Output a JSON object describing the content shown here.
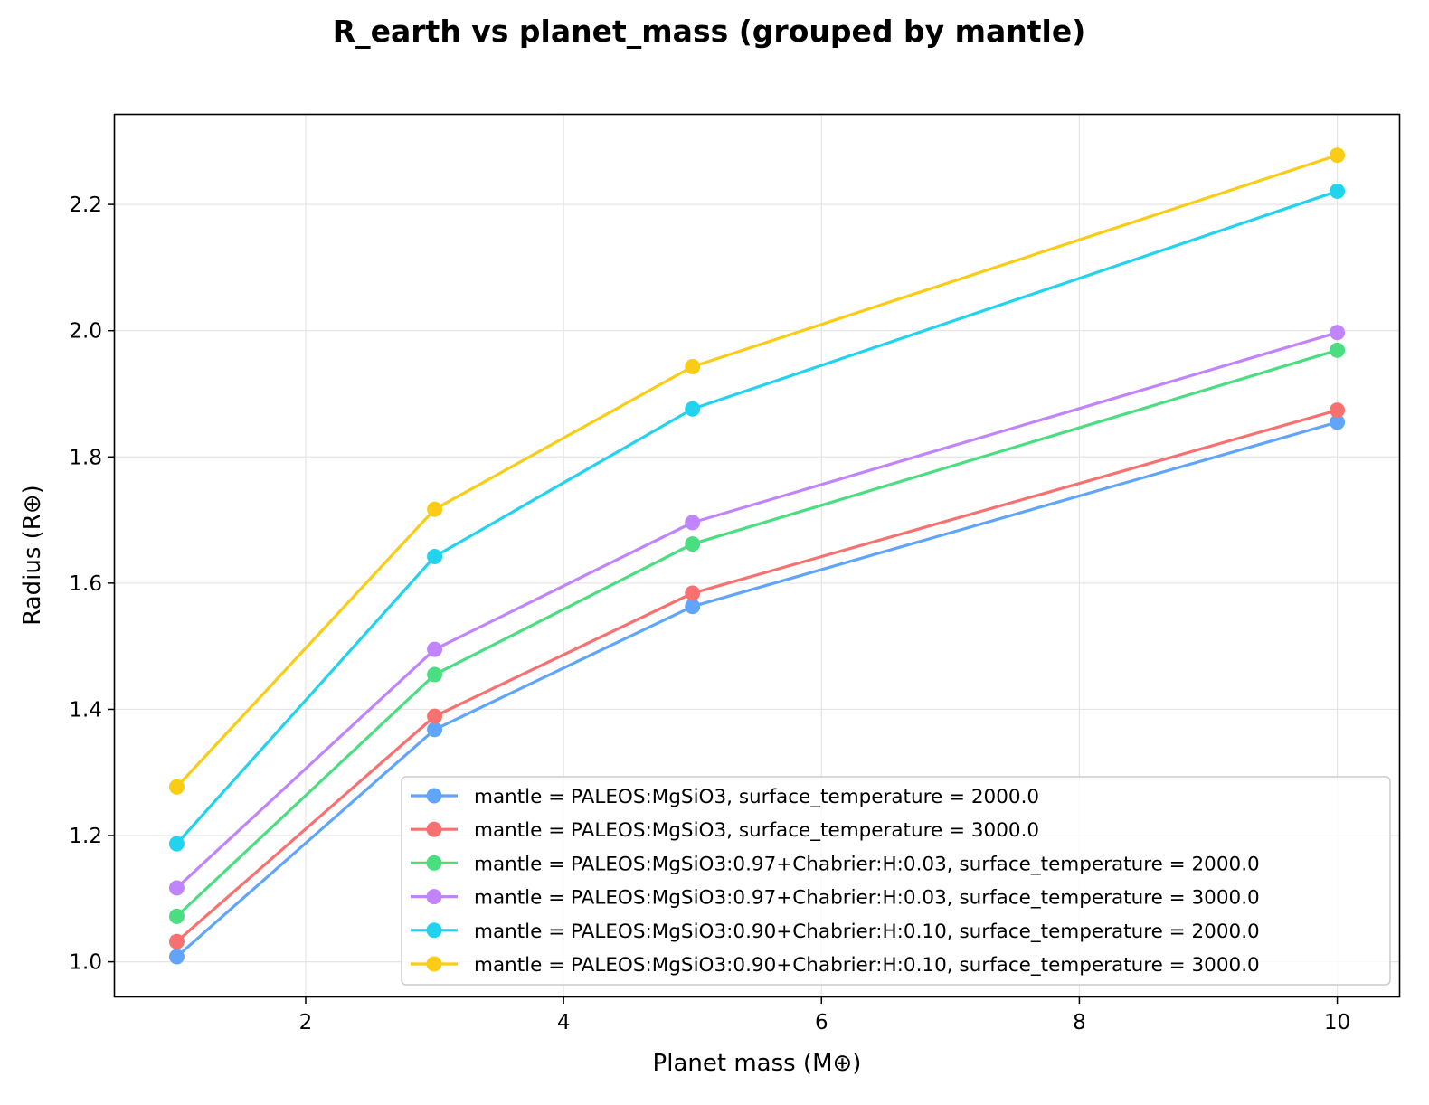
{
  "chart_data": {
    "type": "line",
    "title": "R_earth vs planet_mass (grouped by mantle)",
    "xlabel": "Planet mass (M⊕)",
    "ylabel": "Radius (R⊕)",
    "xlim": [
      0.52,
      10.48
    ],
    "ylim": [
      0.945,
      2.342
    ],
    "xticks": [
      2,
      4,
      6,
      8,
      10
    ],
    "yticks": [
      1.0,
      1.2,
      1.4,
      1.6,
      1.8,
      2.0,
      2.2
    ],
    "xtick_labels": [
      "2",
      "4",
      "6",
      "8",
      "10"
    ],
    "ytick_labels": [
      "1.0",
      "1.2",
      "1.4",
      "1.6",
      "1.8",
      "2.0",
      "2.2"
    ],
    "grid": true,
    "legend_position": "lower-right",
    "x": [
      1,
      3,
      5,
      10
    ],
    "series": [
      {
        "name": "mantle = PALEOS:MgSiO3, surface_temperature = 2000.0",
        "color": "#60a5fa",
        "values": [
          1.008,
          1.368,
          1.563,
          1.855
        ]
      },
      {
        "name": "mantle = PALEOS:MgSiO3, surface_temperature = 3000.0",
        "color": "#f87171",
        "values": [
          1.032,
          1.389,
          1.584,
          1.874
        ]
      },
      {
        "name": "mantle = PALEOS:MgSiO3:0.97+Chabrier:H:0.03, surface_temperature = 2000.0",
        "color": "#4ade80",
        "values": [
          1.072,
          1.455,
          1.662,
          1.969
        ]
      },
      {
        "name": "mantle = PALEOS:MgSiO3:0.97+Chabrier:H:0.03, surface_temperature = 3000.0",
        "color": "#c084fc",
        "values": [
          1.117,
          1.495,
          1.696,
          1.997
        ]
      },
      {
        "name": "mantle = PALEOS:MgSiO3:0.90+Chabrier:H:0.10, surface_temperature = 2000.0",
        "color": "#22d3ee",
        "values": [
          1.187,
          1.642,
          1.876,
          2.221
        ]
      },
      {
        "name": "mantle = PALEOS:MgSiO3:0.90+Chabrier:H:0.10, surface_temperature = 3000.0",
        "color": "#facc15",
        "values": [
          1.277,
          1.717,
          1.943,
          2.278
        ]
      }
    ]
  }
}
